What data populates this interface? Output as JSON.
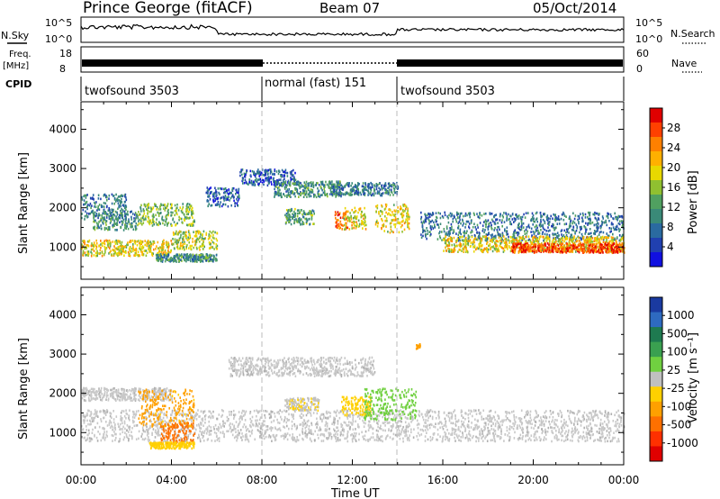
{
  "header": {
    "title": "Prince George (fitACF)",
    "beam": "Beam 07",
    "date": "05/Oct/2014"
  },
  "noise_panel": {
    "left_label": "N.Sky",
    "right_label": "N.Search",
    "left_ticks": [
      "10^5",
      "10^0"
    ],
    "right_ticks": [
      "10^5",
      "10^0"
    ]
  },
  "freq_panel": {
    "left_label_1": "Freq.",
    "left_label_2": "[MHz]",
    "left_ticks": [
      "18",
      "8"
    ],
    "right_label": "Nave",
    "right_ticks": [
      "60",
      "0"
    ]
  },
  "cpid_panel": {
    "label": "CPID",
    "segments": [
      {
        "name": "twofsound 3503",
        "start_hour": 0,
        "end_hour": 8
      },
      {
        "name": "normal (fast) 151",
        "start_hour": 8,
        "end_hour": 14
      },
      {
        "name": "twofsound 3503",
        "start_hour": 14,
        "end_hour": 24
      }
    ]
  },
  "power_panel": {
    "ylabel": "Slant Range [km]",
    "cbar_label": "Power [dB]",
    "cbar_ticks": [
      "28",
      "24",
      "20",
      "16",
      "12",
      "8",
      "4"
    ],
    "cbar_colors": [
      "#e00000",
      "#ff4000",
      "#ff8000",
      "#ffb000",
      "#e8d800",
      "#90c030",
      "#50a060",
      "#3a8a78",
      "#2a6aa0",
      "#2040b0",
      "#1010e0"
    ]
  },
  "velocity_panel": {
    "ylabel": "Slant Range [km]",
    "cbar_label": "Velocity [m s⁻¹]",
    "cbar_ticks": [
      "1000",
      "500",
      "100",
      "25",
      "-25",
      "-100",
      "-500",
      "-1000"
    ],
    "cbar_colors": [
      "#1a3aa0",
      "#2e6ac0",
      "#1e7a50",
      "#3aa050",
      "#70d040",
      "#c0c0c0",
      "#ffd000",
      "#ffa000",
      "#ff7000",
      "#ff3000",
      "#e00000"
    ]
  },
  "x_axis": {
    "label": "Time UT",
    "ticks": [
      "00:00",
      "04:00",
      "08:00",
      "12:00",
      "16:00",
      "20:00",
      "00:00"
    ]
  },
  "chart_data": [
    {
      "type": "heatmap",
      "title": "Power",
      "xlabel": "Time UT",
      "ylabel": "Slant Range [km]",
      "xlim": [
        0,
        24
      ],
      "ylim": [
        180,
        4700
      ],
      "y_ticks": [
        1000,
        2000,
        3000,
        4000
      ],
      "colorbar": {
        "label": "Power [dB]",
        "range": [
          0,
          30
        ],
        "ticks": [
          4,
          8,
          12,
          16,
          20,
          24,
          28
        ]
      },
      "scatter_bands": [
        {
          "time_start": 0.0,
          "time_end": 4.0,
          "range_center": 1000,
          "range_width": 250,
          "value": 18
        },
        {
          "time_start": 0.5,
          "time_end": 2.5,
          "range_center": 1700,
          "range_width": 300,
          "value": 10
        },
        {
          "time_start": 0.0,
          "time_end": 2.0,
          "range_center": 2050,
          "range_width": 400,
          "value": 8
        },
        {
          "time_start": 2.5,
          "time_end": 5.0,
          "range_center": 1850,
          "range_width": 350,
          "value": 14
        },
        {
          "time_start": 4.0,
          "time_end": 6.0,
          "range_center": 1200,
          "range_width": 300,
          "value": 16
        },
        {
          "time_start": 3.3,
          "time_end": 6.0,
          "range_center": 750,
          "range_width": 120,
          "value": 10
        },
        {
          "time_start": 5.5,
          "time_end": 7.0,
          "range_center": 2300,
          "range_width": 300,
          "value": 6
        },
        {
          "time_start": 7.0,
          "time_end": 9.5,
          "range_center": 2800,
          "range_width": 250,
          "value": 6
        },
        {
          "time_start": 8.5,
          "time_end": 11.5,
          "range_center": 2500,
          "range_width": 250,
          "value": 10
        },
        {
          "time_start": 9.0,
          "time_end": 10.3,
          "range_center": 1800,
          "range_width": 250,
          "value": 12
        },
        {
          "time_start": 11.2,
          "time_end": 11.8,
          "range_center": 1700,
          "range_width": 300,
          "value": 24
        },
        {
          "time_start": 11.6,
          "time_end": 12.6,
          "range_center": 1750,
          "range_width": 350,
          "value": 18
        },
        {
          "time_start": 13.0,
          "time_end": 14.5,
          "range_center": 1750,
          "range_width": 450,
          "value": 18
        },
        {
          "time_start": 11.0,
          "time_end": 14.0,
          "range_center": 2500,
          "range_width": 200,
          "value": 8
        },
        {
          "time_start": 15.0,
          "time_end": 24.0,
          "range_center": 1550,
          "range_width": 450,
          "value": 8
        },
        {
          "time_start": 16.0,
          "time_end": 24.0,
          "range_center": 1100,
          "range_width": 250,
          "value": 18
        },
        {
          "time_start": 19.0,
          "time_end": 24.0,
          "range_center": 1000,
          "range_width": 150,
          "value": 26
        }
      ]
    },
    {
      "type": "heatmap",
      "title": "Velocity",
      "xlabel": "Time UT",
      "ylabel": "Slant Range [km]",
      "xlim": [
        0,
        24
      ],
      "ylim": [
        180,
        4700
      ],
      "y_ticks": [
        1000,
        2000,
        3000,
        4000
      ],
      "colorbar": {
        "label": "Velocity [m s⁻¹]",
        "range": [
          -1000,
          1000
        ],
        "ticks": [
          1000,
          500,
          100,
          25,
          -25,
          -100,
          -500,
          -1000
        ]
      },
      "scatter_bands": [
        {
          "time_start": 0.0,
          "time_end": 24.0,
          "range_center": 1200,
          "range_width": 500,
          "value": 0
        },
        {
          "time_start": 0.0,
          "time_end": 4.0,
          "range_center": 2000,
          "range_width": 200,
          "value": 0
        },
        {
          "time_start": 6.5,
          "time_end": 13.0,
          "range_center": 2700,
          "range_width": 300,
          "value": 0
        },
        {
          "time_start": 2.5,
          "time_end": 5.0,
          "range_center": 1650,
          "range_width": 600,
          "value": -300
        },
        {
          "time_start": 3.5,
          "time_end": 5.0,
          "range_center": 1000,
          "range_width": 350,
          "value": -600
        },
        {
          "time_start": 3.0,
          "time_end": 5.0,
          "range_center": 700,
          "range_width": 100,
          "value": -200
        },
        {
          "time_start": 9.0,
          "time_end": 10.5,
          "range_center": 1750,
          "range_width": 200,
          "value": -80
        },
        {
          "time_start": 11.5,
          "time_end": 12.8,
          "range_center": 1700,
          "range_width": 300,
          "value": -200
        },
        {
          "time_start": 12.5,
          "time_end": 14.8,
          "range_center": 1750,
          "range_width": 500,
          "value": 150
        },
        {
          "time_start": 14.8,
          "time_end": 15.0,
          "range_center": 3200,
          "range_width": 100,
          "value": -300
        }
      ]
    }
  ]
}
